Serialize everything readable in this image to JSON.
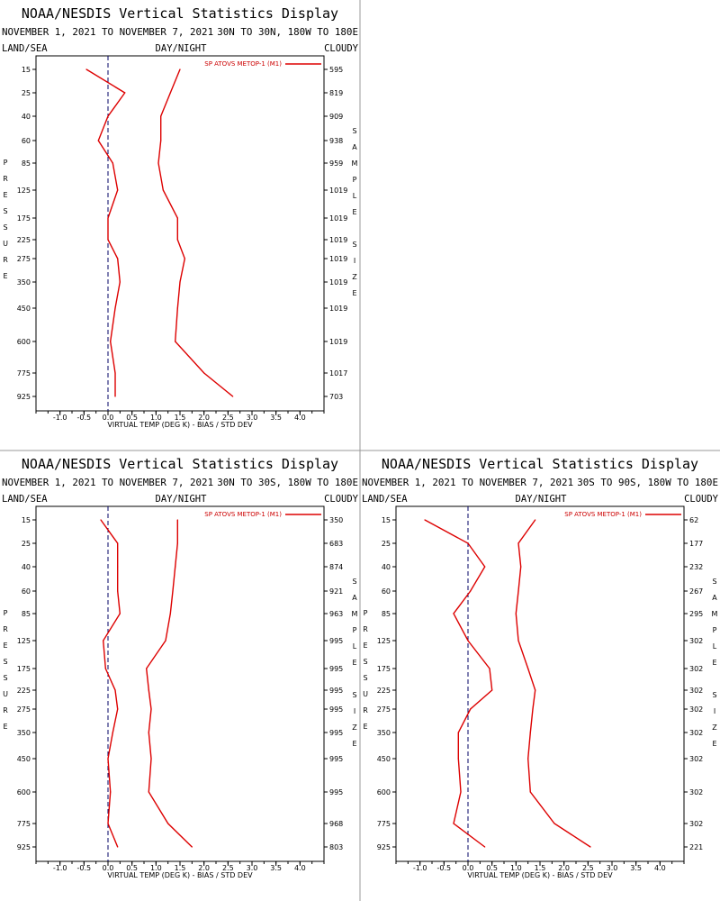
{
  "chart_data": [
    {
      "type": "line",
      "title": "NOAA/NESDIS Vertical Statistics Display",
      "date_range": "NOVEMBER 1, 2021 TO NOVEMBER 7, 2021",
      "region": "30N TO 30N, 180W TO 180E",
      "left_label": "LAND/SEA",
      "center_label": "DAY/NIGHT",
      "right_label": "CLOUDY",
      "xlabel": "VIRTUAL TEMP (DEG K) - BIAS / STD DEV",
      "ylabel": "PRESSURE",
      "right_axis_label": "SAMPLE SIZE",
      "legend": "SP ATOVS METOP-1 (M1)",
      "xlim": [
        -1.5,
        4.5
      ],
      "x_ticks": [
        "-1.0",
        "-0.5",
        "0.0",
        "0.5",
        "1.0",
        "1.5",
        "2.0",
        "2.5",
        "3.0",
        "3.5",
        "4.0"
      ],
      "pressure_levels": [
        "15",
        "25",
        "40",
        "60",
        "85",
        "125",
        "175",
        "225",
        "275",
        "350",
        "450",
        "600",
        "775",
        "925"
      ],
      "sample_size": [
        "595",
        "819",
        "909",
        "938",
        "959",
        "1019",
        "1019",
        "1019",
        "1019",
        "1019",
        "1019",
        "1019",
        "1017",
        "703"
      ],
      "series": [
        {
          "name": "BIAS",
          "values": [
            -0.45,
            0.35,
            0.0,
            -0.2,
            0.1,
            0.2,
            0.0,
            0.0,
            0.2,
            0.25,
            0.15,
            0.05,
            0.15,
            0.15
          ]
        },
        {
          "name": "STD DEV",
          "values": [
            1.5,
            1.3,
            1.1,
            1.1,
            1.05,
            1.15,
            1.45,
            1.45,
            1.6,
            1.5,
            1.45,
            1.4,
            2.0,
            2.6
          ]
        }
      ],
      "grid": false,
      "legend_position": "top-right"
    },
    {
      "type": "line",
      "title": "NOAA/NESDIS Vertical Statistics Display",
      "date_range": "NOVEMBER 1, 2021 TO NOVEMBER 7, 2021",
      "region": "30N TO 30S, 180W TO 180E",
      "left_label": "LAND/SEA",
      "center_label": "DAY/NIGHT",
      "right_label": "CLOUDY",
      "xlabel": "VIRTUAL TEMP (DEG K) - BIAS / STD DEV",
      "ylabel": "PRESSURE",
      "right_axis_label": "SAMPLE SIZE",
      "legend": "SP ATOVS METOP-1 (M1)",
      "xlim": [
        -1.5,
        4.5
      ],
      "x_ticks": [
        "-1.0",
        "-0.5",
        "0.0",
        "0.5",
        "1.0",
        "1.5",
        "2.0",
        "2.5",
        "3.0",
        "3.5",
        "4.0"
      ],
      "pressure_levels": [
        "15",
        "25",
        "40",
        "60",
        "85",
        "125",
        "175",
        "225",
        "275",
        "350",
        "450",
        "600",
        "775",
        "925"
      ],
      "sample_size": [
        "350",
        "683",
        "874",
        "921",
        "963",
        "995",
        "995",
        "995",
        "995",
        "995",
        "995",
        "995",
        "968",
        "803"
      ],
      "series": [
        {
          "name": "BIAS",
          "values": [
            -0.15,
            0.2,
            0.2,
            0.2,
            0.25,
            -0.1,
            -0.05,
            0.15,
            0.2,
            0.1,
            0.0,
            0.05,
            0.0,
            0.2
          ]
        },
        {
          "name": "STD DEV",
          "values": [
            1.45,
            1.45,
            1.4,
            1.35,
            1.3,
            1.2,
            0.8,
            0.85,
            0.9,
            0.85,
            0.9,
            0.85,
            1.25,
            1.75
          ]
        }
      ],
      "grid": false,
      "legend_position": "top-right"
    },
    {
      "type": "line",
      "title": "NOAA/NESDIS Vertical Statistics Display",
      "date_range": "NOVEMBER 1, 2021 TO NOVEMBER 7, 2021",
      "region": "30S TO 90S, 180W TO 180E",
      "left_label": "LAND/SEA",
      "center_label": "DAY/NIGHT",
      "right_label": "CLOUDY",
      "xlabel": "VIRTUAL TEMP (DEG K) - BIAS / STD DEV",
      "ylabel": "PRESSURE",
      "right_axis_label": "SAMPLE SIZE",
      "legend": "SP ATOVS METOP-1 (M1)",
      "xlim": [
        -1.5,
        4.5
      ],
      "x_ticks": [
        "-1.0",
        "-0.5",
        "0.0",
        "0.5",
        "1.0",
        "1.5",
        "2.0",
        "2.5",
        "3.0",
        "3.5",
        "4.0"
      ],
      "pressure_levels": [
        "15",
        "25",
        "40",
        "60",
        "85",
        "125",
        "175",
        "225",
        "275",
        "350",
        "450",
        "600",
        "775",
        "925"
      ],
      "sample_size": [
        "62",
        "177",
        "232",
        "267",
        "295",
        "302",
        "302",
        "302",
        "302",
        "302",
        "302",
        "302",
        "302",
        "221"
      ],
      "series": [
        {
          "name": "BIAS",
          "values": [
            -0.9,
            0.0,
            0.35,
            0.05,
            -0.3,
            0.0,
            0.45,
            0.5,
            0.05,
            -0.2,
            -0.2,
            -0.15,
            -0.3,
            0.35
          ]
        },
        {
          "name": "STD DEV",
          "values": [
            1.4,
            1.05,
            1.1,
            1.05,
            1.0,
            1.05,
            1.25,
            1.4,
            1.35,
            1.3,
            1.25,
            1.3,
            1.8,
            2.55
          ]
        }
      ],
      "grid": false,
      "legend_position": "top-right"
    }
  ],
  "colors": {
    "series": "#dd0000",
    "zero_line": "#000066",
    "separator": "#999999"
  }
}
